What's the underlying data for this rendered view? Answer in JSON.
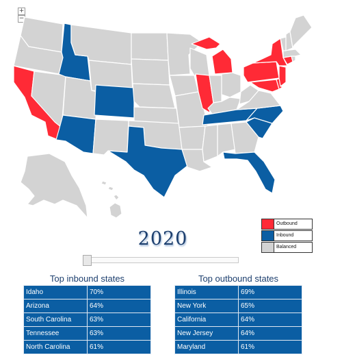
{
  "controls": {
    "zoom_in": "+",
    "zoom_out": "−"
  },
  "colors": {
    "outbound": "#ff2a36",
    "inbound": "#0b5ea3",
    "balanced": "#d3d3d3"
  },
  "legend": [
    {
      "label": "Outbound",
      "color": "#ff2a36"
    },
    {
      "label": "Inbound",
      "color": "#0b5ea3"
    },
    {
      "label": "Balanced",
      "color": "#d3d3d3"
    }
  ],
  "year": "2020",
  "slider": {
    "value": 2020
  },
  "inbound_table": {
    "title": "Top inbound states",
    "rows": [
      {
        "state": "Idaho",
        "pct": "70%"
      },
      {
        "state": "Arizona",
        "pct": "64%"
      },
      {
        "state": "South Carolina",
        "pct": "63%"
      },
      {
        "state": "Tennessee",
        "pct": "63%"
      },
      {
        "state": "North Carolina",
        "pct": "61%"
      }
    ]
  },
  "outbound_table": {
    "title": "Top outbound states",
    "rows": [
      {
        "state": "Illinois",
        "pct": "69%"
      },
      {
        "state": "New York",
        "pct": "65%"
      },
      {
        "state": "California",
        "pct": "64%"
      },
      {
        "state": "New Jersey",
        "pct": "64%"
      },
      {
        "state": "Maryland",
        "pct": "61%"
      }
    ]
  },
  "state_status": {
    "washington": "balanced",
    "oregon": "balanced",
    "california": "outbound",
    "nevada": "balanced",
    "idaho": "inbound",
    "montana": "balanced",
    "wyoming": "balanced",
    "utah": "balanced",
    "arizona": "inbound",
    "colorado": "inbound",
    "new-mexico": "balanced",
    "north-dakota": "balanced",
    "south-dakota": "balanced",
    "nebraska": "balanced",
    "kansas": "balanced",
    "oklahoma": "balanced",
    "texas": "inbound",
    "minnesota": "balanced",
    "iowa": "balanced",
    "missouri": "balanced",
    "arkansas": "balanced",
    "louisiana": "balanced",
    "wisconsin": "balanced",
    "illinois": "outbound",
    "michigan": "outbound",
    "indiana": "balanced",
    "ohio": "balanced",
    "kentucky": "balanced",
    "tennessee": "inbound",
    "mississippi": "balanced",
    "alabama": "balanced",
    "georgia": "balanced",
    "florida": "inbound",
    "south-carolina": "inbound",
    "north-carolina": "inbound",
    "virginia": "balanced",
    "west-virginia": "balanced",
    "pennsylvania": "outbound",
    "new-york": "outbound",
    "maryland": "outbound",
    "delaware": "outbound",
    "new-jersey": "outbound",
    "connecticut": "outbound",
    "rhode-island": "balanced",
    "massachusetts": "balanced",
    "vermont": "balanced",
    "new-hampshire": "balanced",
    "maine": "balanced",
    "alaska": "balanced",
    "hawaii": "balanced"
  }
}
